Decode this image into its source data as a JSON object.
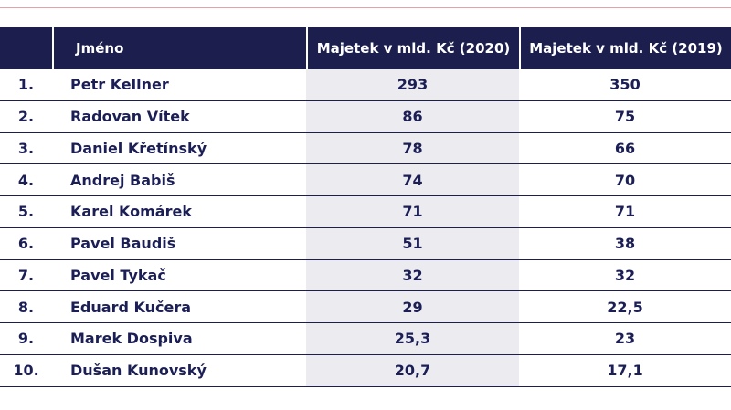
{
  "table": {
    "header": [
      "",
      "Jméno",
      "Majetek v mld. Kč (2020)",
      "Majetek v mld. Kč (2019)"
    ],
    "rows": [
      [
        "1.",
        "Petr Kellner",
        "293",
        "350"
      ],
      [
        "2.",
        "Radovan Vítek",
        "86",
        "75"
      ],
      [
        "3.",
        "Daniel Křetínský",
        "78",
        "66"
      ],
      [
        "4.",
        "Andrej Babiš",
        "74",
        "70"
      ],
      [
        "5.",
        "Karel Komárek",
        "71",
        "71"
      ],
      [
        "6.",
        "Pavel Baudiš",
        "51",
        "38"
      ],
      [
        "7.",
        "Pavel Tykač",
        "32",
        "32"
      ],
      [
        "8.",
        "Eduard Kučera",
        "29",
        "22,5"
      ],
      [
        "9.",
        "Marek Dospiva",
        "25,3",
        "23"
      ],
      [
        "10.",
        "Dušan Kunovský",
        "20,7",
        "17,1"
      ]
    ]
  }
}
